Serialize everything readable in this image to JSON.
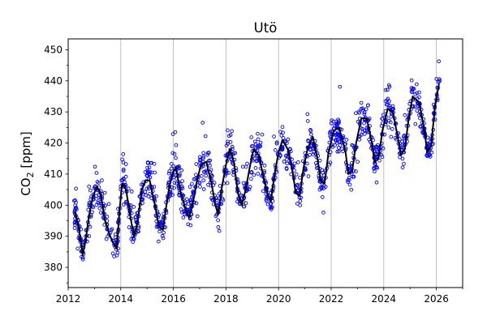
{
  "chart_data": {
    "type": "scatter",
    "title": "Utö",
    "xlabel": "",
    "ylabel": {
      "main": "CO",
      "subscript": "2",
      "unit": " [ppm]"
    },
    "xlim": [
      2012.0,
      2027.0
    ],
    "ylim": [
      373.5,
      453.5
    ],
    "x_ticks": [
      2012,
      2014,
      2016,
      2018,
      2020,
      2022,
      2024,
      2026
    ],
    "y_ticks": [
      380,
      390,
      400,
      410,
      420,
      430,
      440,
      450
    ],
    "grid": {
      "x": true,
      "y": false
    },
    "colors": {
      "points": "#0000ff",
      "line": "#000000",
      "grid": "#b0b0b0"
    },
    "series": [
      {
        "kind": "monthly_mean_line",
        "x": [
          2012.25,
          2012.4,
          2012.55,
          2012.65,
          2012.8,
          2012.95,
          2013.1,
          2013.25,
          2013.4,
          2013.55,
          2013.7,
          2013.85,
          2013.95,
          2014.05,
          2014.2,
          2014.35,
          2014.5,
          2014.65,
          2014.8,
          2014.95,
          2015.1,
          2015.3,
          2015.45,
          2015.6,
          2015.7,
          2015.85,
          2016.0,
          2016.1,
          2016.25,
          2016.45,
          2016.6,
          2016.75,
          2016.9,
          2017.05,
          2017.25,
          2017.45,
          2017.6,
          2017.7,
          2017.85,
          2018.0,
          2018.15,
          2018.3,
          2018.45,
          2018.6,
          2018.75,
          2018.9,
          2019.05,
          2019.25,
          2019.45,
          2019.6,
          2019.7,
          2019.85,
          2020.0,
          2020.15,
          2020.35,
          2020.55,
          2020.65,
          2020.8,
          2020.95,
          2021.1,
          2021.3,
          2021.5,
          2021.6,
          2021.75,
          2021.9,
          2022.1,
          2022.3,
          2022.55,
          2022.65,
          2022.8,
          2022.95,
          2023.15,
          2023.35,
          2023.55,
          2023.65,
          2023.8,
          2023.95,
          2024.15,
          2024.35,
          2024.55,
          2024.65,
          2024.8,
          2024.95,
          2025.1,
          2025.35,
          2025.55,
          2025.65,
          2025.8,
          2025.95,
          2026.1
        ],
        "y": [
          398,
          393,
          384,
          388,
          397,
          403,
          406,
          403,
          395,
          391,
          388,
          386,
          398,
          407,
          405,
          397,
          390,
          395,
          405,
          408,
          408,
          400,
          393,
          392,
          398,
          406,
          411,
          412,
          405,
          399,
          396,
          401,
          408,
          413,
          414,
          407,
          400,
          397,
          406,
          413,
          418,
          414,
          404,
          400,
          405,
          412,
          418,
          416,
          408,
          403,
          401,
          410,
          417,
          421,
          418,
          410,
          404,
          403,
          412,
          418,
          422,
          414,
          408,
          407,
          417,
          424,
          425,
          417,
          410,
          411,
          420,
          428,
          428,
          420,
          414,
          415,
          424,
          431,
          430,
          421,
          416,
          418,
          428,
          435,
          433,
          424,
          417,
          419,
          432,
          439
        ]
      }
    ],
    "scatter_generation_note": null
  }
}
